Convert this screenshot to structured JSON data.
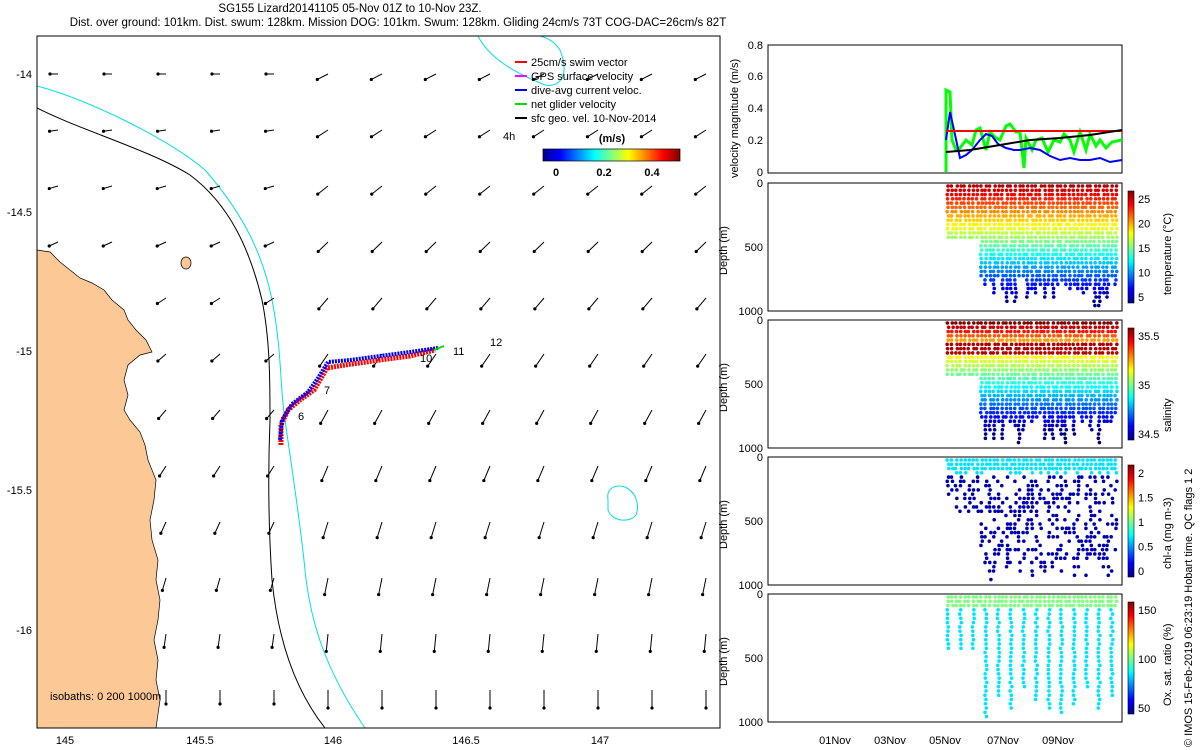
{
  "header": {
    "title_line1": "SG155 Lizard20141105 05-Nov 01Z to 10-Nov 23Z.",
    "title_line2": "Dist. over ground: 101km. Dist. swum: 128km. Mission DOG: 101km. Swum: 128km. Gliding 24cm/s 73T COG-DAC=26cm/s 82T"
  },
  "map": {
    "lat_ticks": [
      "-14",
      "-14.5",
      "-15",
      "-15.5",
      "-16"
    ],
    "lon_ticks": [
      "145",
      "145.5",
      "146",
      "146.5",
      "147"
    ],
    "legend": [
      {
        "label": "25cm/s swim vector",
        "color": "#ff0000"
      },
      {
        "label": "GPS surface velocity",
        "color": "#ff00ff"
      },
      {
        "label": "dive-avg current veloc.",
        "color": "#0000ff"
      },
      {
        "label": "net glider velocity",
        "color": "#00dd00"
      },
      {
        "label": "sfc geo. vel. 10-Nov-2014",
        "color": "#000000"
      }
    ],
    "time_label": "4h",
    "colorbar": {
      "unit": "(m/s)",
      "ticks": [
        "0",
        "0.2",
        "0.4"
      ]
    },
    "isobaths_label": "isobaths: 0   200  1000m",
    "track_labels": [
      "6",
      "7",
      "10",
      "11",
      "12"
    ],
    "colors": {
      "land": "#fcc896",
      "isobath_200": "#00e0e0",
      "coast": "#000000"
    }
  },
  "panels": {
    "velocity": {
      "ylabel": "velocity magnitude (m/s)",
      "yticks": [
        "0",
        "0.2",
        "0.4",
        "0.6",
        "0.8"
      ]
    },
    "temperature": {
      "ylabel": "Depth (m)",
      "clabel": "temperature (°C)",
      "cticks": [
        "5",
        "10",
        "15",
        "20",
        "25"
      ],
      "yticks": [
        "0",
        "500",
        "1000"
      ]
    },
    "salinity": {
      "ylabel": "Depth (m)",
      "clabel": "salinity",
      "cticks": [
        "34.5",
        "35",
        "35.5"
      ],
      "yticks": [
        "0",
        "500",
        "1000"
      ]
    },
    "chla": {
      "ylabel": "Depth (m)",
      "clabel": "chl-a (mg m-3)",
      "cticks": [
        "0",
        "0.5",
        "1",
        "1.5",
        "2"
      ],
      "yticks": [
        "0",
        "500",
        "1000"
      ]
    },
    "oxygen": {
      "ylabel": "Depth (m)",
      "clabel": "Ox. sat. ratio (%)",
      "cticks": [
        "50",
        "100",
        "150"
      ],
      "yticks": [
        "0",
        "500",
        "1000"
      ]
    }
  },
  "time_axis": [
    "01Nov",
    "03Nov",
    "05Nov",
    "07Nov",
    "09Nov"
  ],
  "credit": "© IMOS 15-Feb-2019 06:23:19 Hobart time. QC flags 1  2"
}
